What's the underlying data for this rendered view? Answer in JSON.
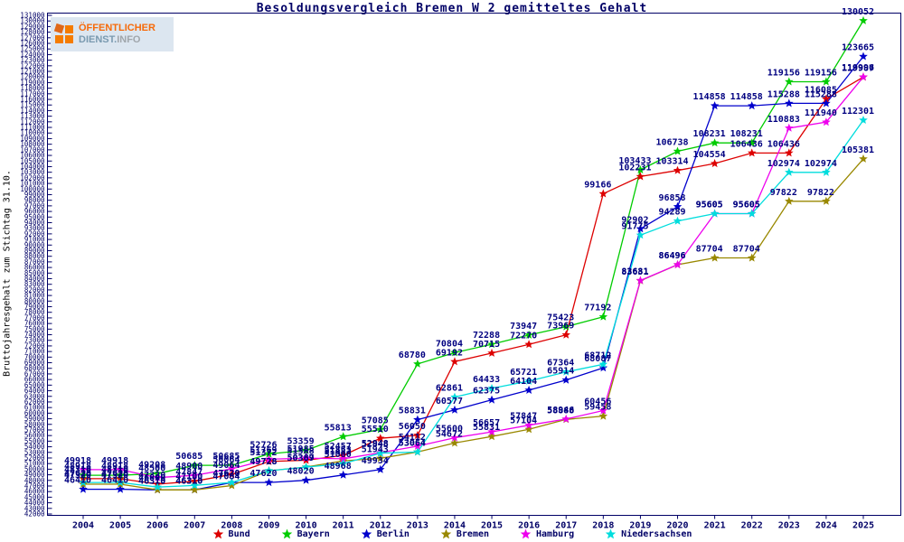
{
  "logo": {
    "line1": "ÖFFENTLICHER",
    "line2_a": "DIENST.",
    "line2_b": "INFO"
  },
  "title": "Besoldungsvergleich Bremen W 2 gemitteltes Gehalt",
  "chart_data": {
    "type": "line",
    "title": "Besoldungsvergleich Bremen W 2 gemitteltes Gehalt",
    "ylabel": "Bruttojahresgehalt zum Stichtag 31.10.",
    "xlabel": "",
    "ylim": [
      42000,
      131000
    ],
    "ytick_step": 1000,
    "grid": false,
    "legend_position": "bottom",
    "point_labels": true,
    "label_color": "#000080",
    "axis_color": "#000066",
    "x": [
      2004,
      2005,
      2006,
      2007,
      2008,
      2009,
      2010,
      2011,
      2012,
      2013,
      2014,
      2015,
      2016,
      2017,
      2018,
      2019,
      2020,
      2021,
      2022,
      2023,
      2024,
      2025
    ],
    "series": [
      {
        "name": "Bund",
        "color": "#dd0000",
        "values": [
          48310,
          48310,
          47320,
          47847,
          49064,
          51372,
          51588,
          52457,
          55510,
          56050,
          69192,
          70715,
          72270,
          73969,
          99166,
          102231,
          103314,
          104554,
          106436,
          106436,
          116085,
          119987
        ]
      },
      {
        "name": "Bayern",
        "color": "#00cc00",
        "values": [
          48918,
          48918,
          49208,
          50685,
          50685,
          52726,
          53359,
          55813,
          57085,
          68780,
          70804,
          72288,
          73947,
          75423,
          77192,
          103433,
          106738,
          108231,
          108231,
          119156,
          119156,
          130052
        ]
      },
      {
        "name": "Berlin",
        "color": "#0000cc",
        "values": [
          46410,
          46410,
          46310,
          46310,
          47620,
          47620,
          48020,
          48968,
          49934,
          58831,
          60577,
          62375,
          64104,
          65914,
          68087,
          92902,
          96858,
          114858,
          114858,
          115288,
          115288,
          123665
        ]
      },
      {
        "name": "Bremen",
        "color": "#998800",
        "values": [
          47320,
          47320,
          46310,
          46310,
          47084,
          49728,
          50387,
          51483,
          51943,
          53064,
          54672,
          55831,
          57104,
          58888,
          59458,
          83631,
          86496,
          87704,
          87704,
          97822,
          97822,
          105381
        ]
      },
      {
        "name": "Hamburg",
        "color": "#ee00ee",
        "values": [
          49918,
          49918,
          48500,
          48900,
          50064,
          51769,
          51985,
          51853,
          52948,
          54112,
          55600,
          56657,
          57847,
          58946,
          60456,
          83681,
          86496,
          95605,
          95605,
          110883,
          111940,
          119996
        ]
      },
      {
        "name": "Niedersachsen",
        "color": "#00dddd",
        "values": [
          47620,
          47620,
          46800,
          47100,
          47620,
          49728,
          50369,
          51000,
          52848,
          53064,
          62861,
          64433,
          65721,
          67364,
          68712,
          91775,
          94289,
          95605,
          95605,
          102974,
          102974,
          112301
        ]
      }
    ]
  }
}
